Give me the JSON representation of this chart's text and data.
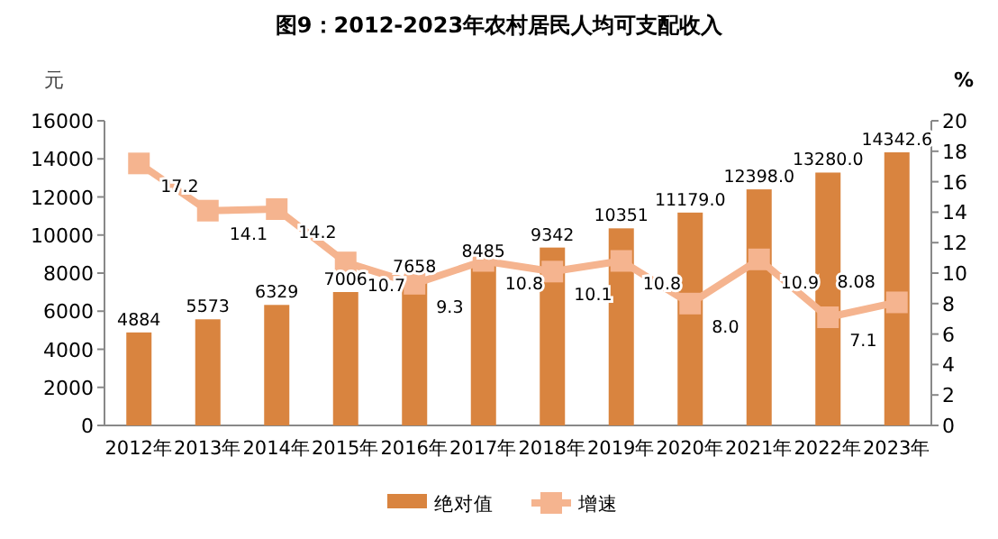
{
  "chart_data": {
    "type": "bar",
    "title": "图9：2012-2023年农村居民人均可支配收入",
    "ylabel": "元",
    "y2label": "%",
    "categories": [
      "2012年",
      "2013年",
      "2014年",
      "2015年",
      "2016年",
      "2017年",
      "2018年",
      "2019年",
      "2020年",
      "2021年",
      "2022年",
      "2023年"
    ],
    "series": [
      {
        "name": "绝对值",
        "color": "#d9843f",
        "values": [
          4884,
          5573,
          6329,
          7006,
          7658,
          8485,
          9342,
          10351,
          11179,
          12398,
          13280,
          14342.6
        ],
        "value_labels": [
          "4884",
          "5573",
          "6329",
          "7006",
          "7658",
          "8485",
          "9342",
          "10351",
          "11179.0",
          "12398.0",
          "13280.0",
          "14342.6"
        ]
      },
      {
        "name": "增速",
        "type": "line",
        "axis": "y2",
        "color": "#f5b48f",
        "marker": "square",
        "values": [
          17.2,
          14.1,
          14.2,
          10.7,
          9.3,
          10.8,
          10.1,
          10.8,
          8.0,
          10.9,
          7.1,
          8.08
        ],
        "value_labels": [
          "17.2",
          "14.1",
          "14.2",
          "10.7",
          "9.3",
          "10.8",
          "10.1",
          "10.8",
          "8.0",
          "10.9",
          "7.1",
          "8.08"
        ]
      }
    ],
    "ylim": [
      0,
      16000
    ],
    "yticks": [
      0,
      2000,
      4000,
      6000,
      8000,
      10000,
      12000,
      14000,
      16000
    ],
    "y2lim": [
      0,
      20
    ],
    "y2ticks": [
      0,
      2,
      4,
      6,
      8,
      10,
      12,
      14,
      16,
      18,
      20
    ],
    "legend": "bottom",
    "grid": false
  }
}
